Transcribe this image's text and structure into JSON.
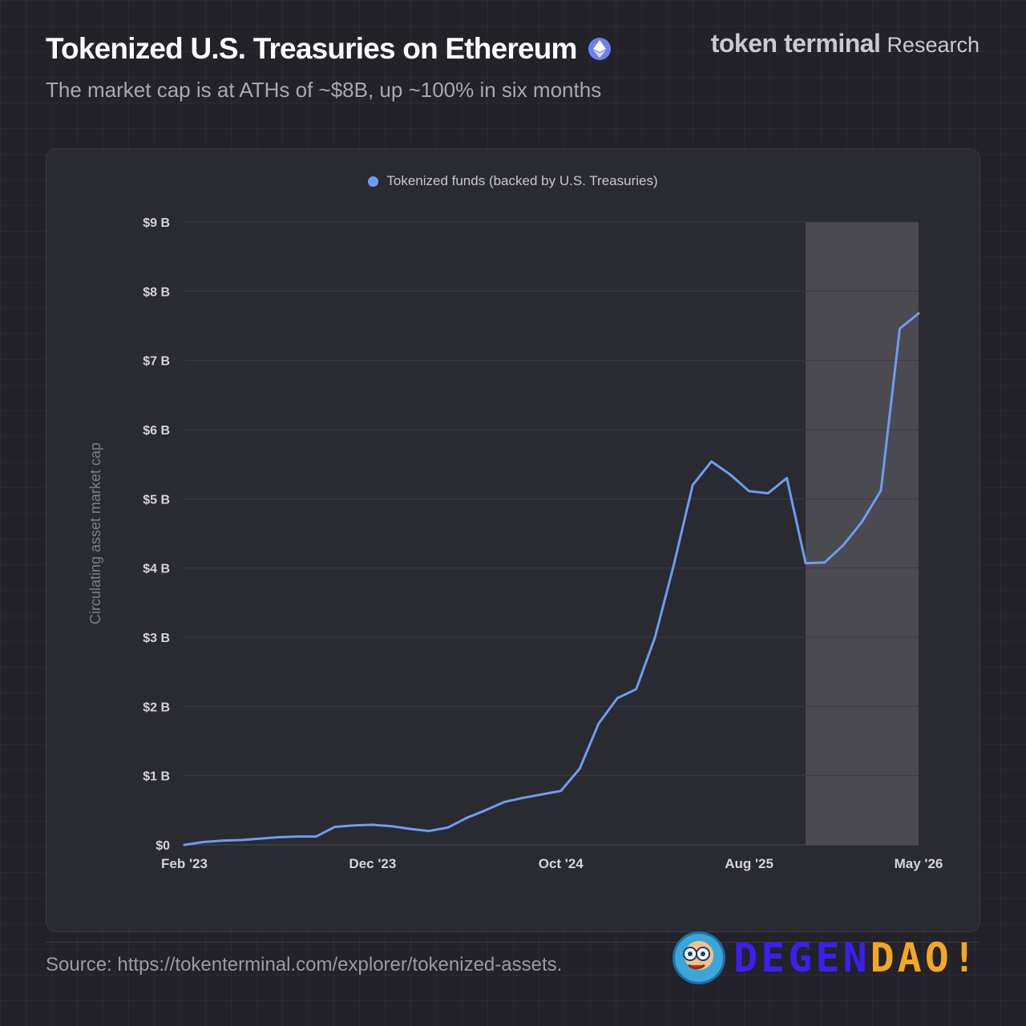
{
  "header": {
    "title": "Tokenized U.S. Treasuries on Ethereum",
    "subtitle": "The market cap is at ATHs of ~$8B, up ~100% in six months",
    "brand_main": "token terminal",
    "brand_sub": "Research"
  },
  "footer": {
    "source": "Source: https://tokenterminal.com/explorer/tokenized-assets.",
    "watermark_part1": "DEGEN",
    "watermark_part2": "DAO!"
  },
  "colors": {
    "background": "#222228",
    "card": "#2a2a31",
    "line": "#6f9bf2",
    "highlight": "#4a4a50"
  },
  "chart_data": {
    "type": "line",
    "ylabel": "Circulating asset market cap",
    "ylim": [
      0,
      9
    ],
    "y_unit": "B USD",
    "y_ticks": [
      {
        "value": 0,
        "label": "$0"
      },
      {
        "value": 1,
        "label": "$1 B"
      },
      {
        "value": 2,
        "label": "$2 B"
      },
      {
        "value": 3,
        "label": "$3 B"
      },
      {
        "value": 4,
        "label": "$4 B"
      },
      {
        "value": 5,
        "label": "$5 B"
      },
      {
        "value": 6,
        "label": "$6 B"
      },
      {
        "value": 7,
        "label": "$7 B"
      },
      {
        "value": 8,
        "label": "$8 B"
      },
      {
        "value": 9,
        "label": "$9 B"
      }
    ],
    "x_ticks": [
      "Feb '23",
      "Dec '23",
      "Oct '24",
      "Aug '25",
      "May '26"
    ],
    "grid": true,
    "legend_position": "top-center",
    "highlight_region": [
      "Nov '25",
      "May '26"
    ],
    "series": [
      {
        "name": "Tokenized funds (backed by U.S. Treasuries)",
        "color": "#6f9bf2",
        "points": [
          {
            "x": "Feb '23",
            "y": 0.0
          },
          {
            "x": "Mar '23",
            "y": 0.04
          },
          {
            "x": "Apr '23",
            "y": 0.06
          },
          {
            "x": "May '23",
            "y": 0.07
          },
          {
            "x": "Jun '23",
            "y": 0.09
          },
          {
            "x": "Jul '23",
            "y": 0.11
          },
          {
            "x": "Aug '23",
            "y": 0.12
          },
          {
            "x": "Sep '23",
            "y": 0.12
          },
          {
            "x": "Oct '23",
            "y": 0.26
          },
          {
            "x": "Nov '23",
            "y": 0.28
          },
          {
            "x": "Dec '23",
            "y": 0.29
          },
          {
            "x": "Jan '24",
            "y": 0.27
          },
          {
            "x": "Feb '24",
            "y": 0.23
          },
          {
            "x": "Mar '24",
            "y": 0.2
          },
          {
            "x": "Apr '24",
            "y": 0.25
          },
          {
            "x": "May '24",
            "y": 0.39
          },
          {
            "x": "Jun '24",
            "y": 0.5
          },
          {
            "x": "Jul '24",
            "y": 0.62
          },
          {
            "x": "Aug '24",
            "y": 0.68
          },
          {
            "x": "Sep '24",
            "y": 0.73
          },
          {
            "x": "Oct '24",
            "y": 0.78
          },
          {
            "x": "Nov '24",
            "y": 1.1
          },
          {
            "x": "Dec '24",
            "y": 1.75
          },
          {
            "x": "Jan '25",
            "y": 2.12
          },
          {
            "x": "Feb '25",
            "y": 2.25
          },
          {
            "x": "Mar '25",
            "y": 3.0
          },
          {
            "x": "Apr '25",
            "y": 4.05
          },
          {
            "x": "May '25",
            "y": 5.2
          },
          {
            "x": "Jun '25",
            "y": 5.54
          },
          {
            "x": "Jul '25",
            "y": 5.35
          },
          {
            "x": "Aug '25",
            "y": 5.11
          },
          {
            "x": "Sep '25",
            "y": 5.08
          },
          {
            "x": "Oct '25",
            "y": 5.3
          },
          {
            "x": "Nov '25",
            "y": 4.07
          },
          {
            "x": "Dec '25",
            "y": 4.08
          },
          {
            "x": "Jan '26",
            "y": 4.33
          },
          {
            "x": "Feb '26",
            "y": 4.67
          },
          {
            "x": "Mar '26",
            "y": 5.12
          },
          {
            "x": "Apr '26",
            "y": 7.46
          },
          {
            "x": "May '26",
            "y": 7.68
          }
        ]
      }
    ]
  }
}
